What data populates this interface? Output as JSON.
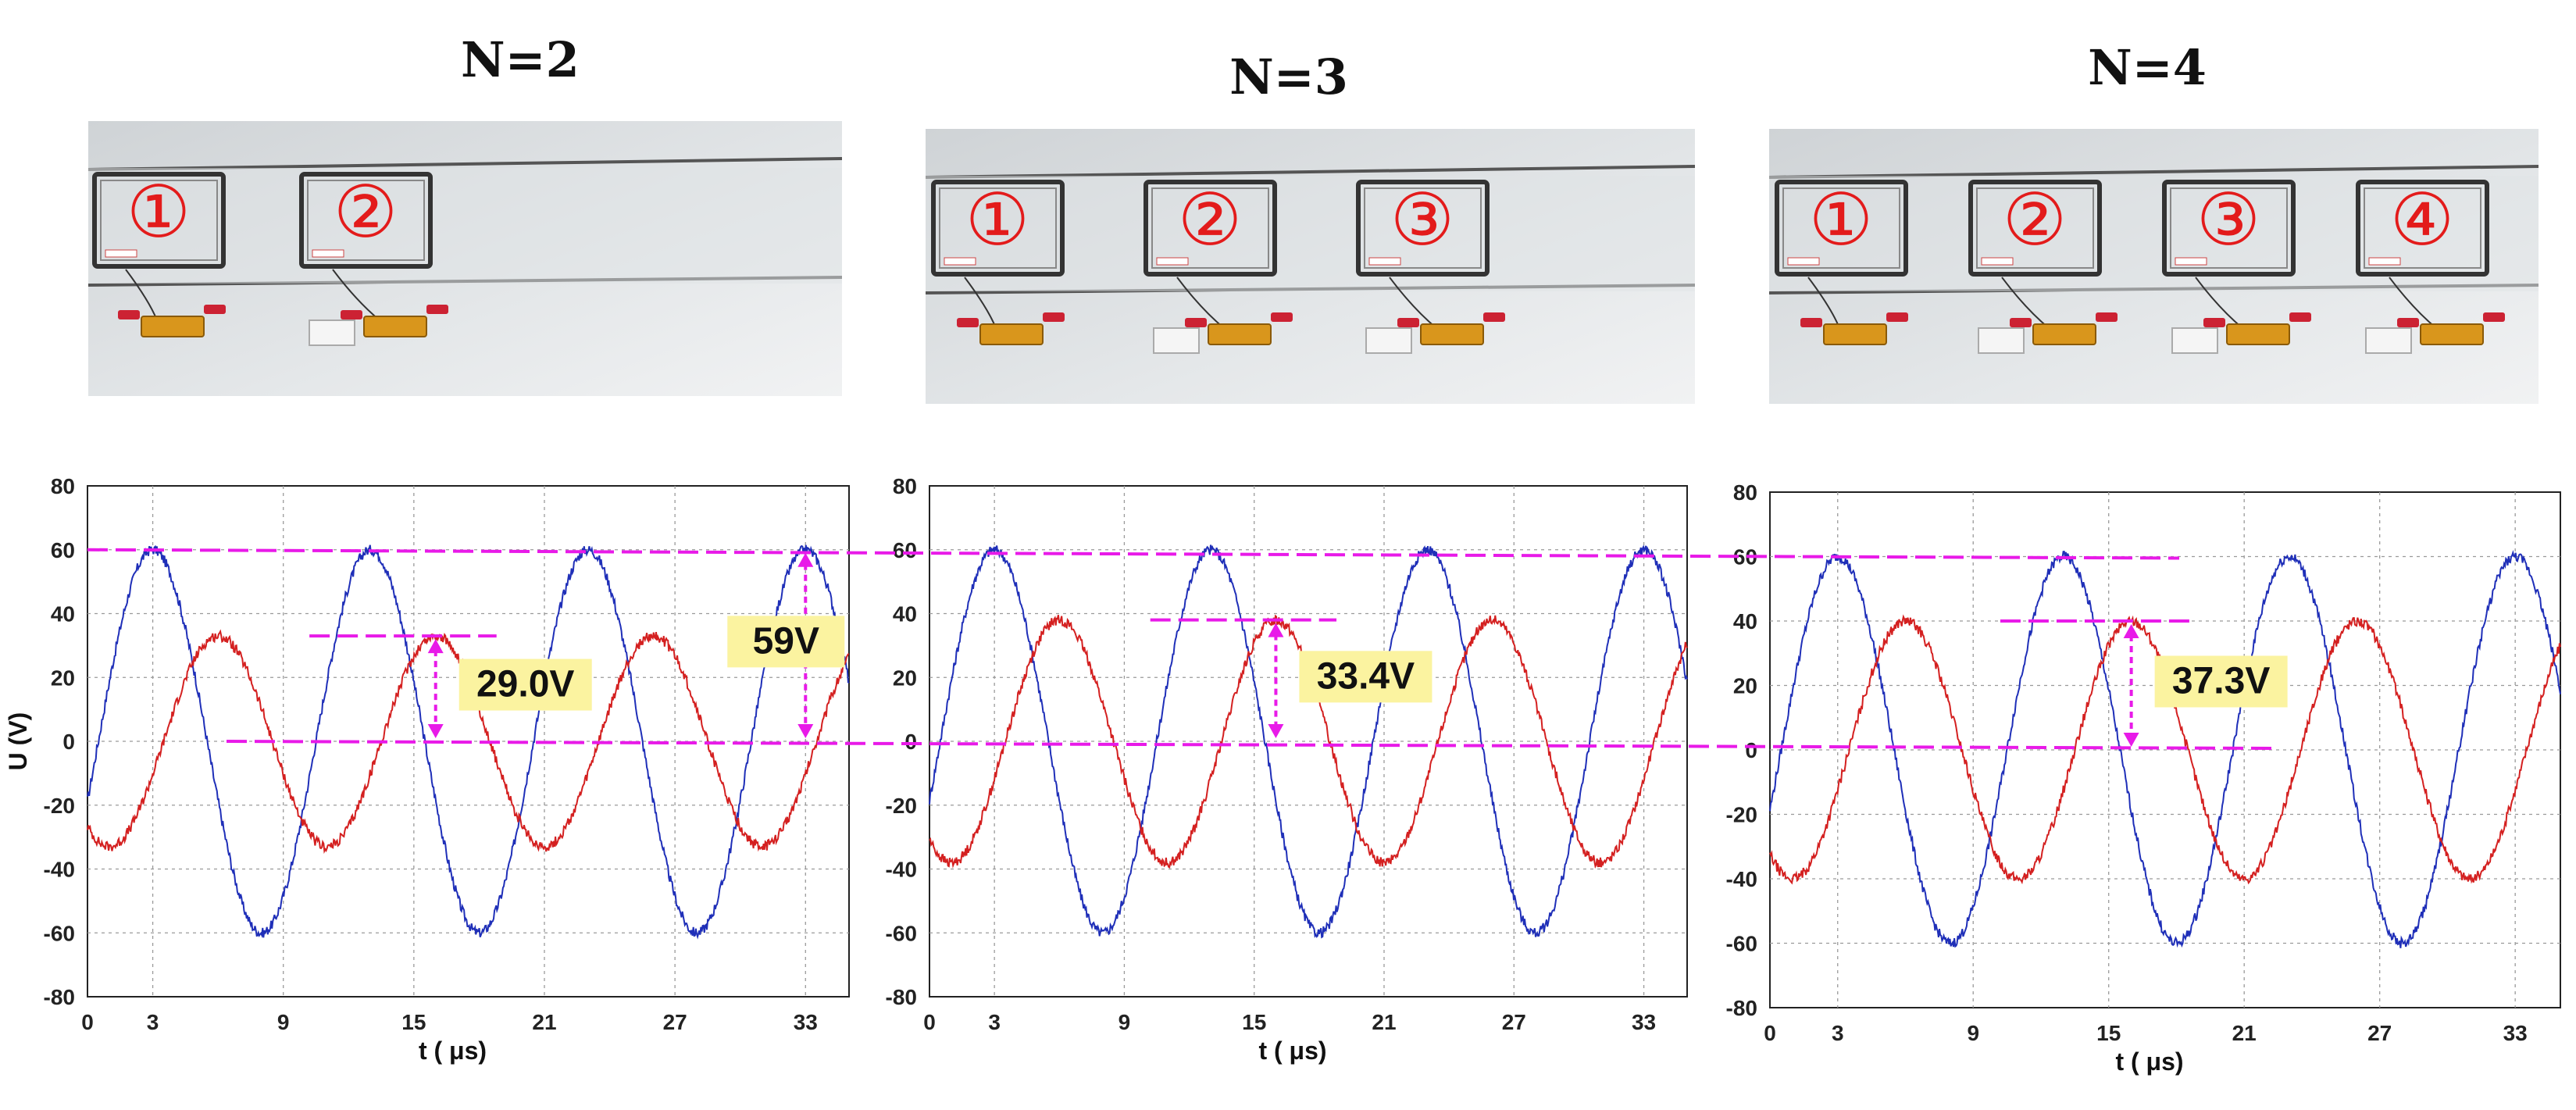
{
  "colors": {
    "series_blue": "#1f2fb8",
    "series_red": "#d42020",
    "annotation_magenta": "#e81ae8",
    "badge_fill": "#fbf3a0",
    "photo_label": "#e31b1b"
  },
  "icons": {
    "measure": "double-headed-arrow-icon"
  },
  "panels": [
    {
      "title": "N=2",
      "photo": {
        "coil_labels": [
          "①",
          "②"
        ]
      },
      "annotation": "29.0V"
    },
    {
      "title": "N=3",
      "photo": {
        "coil_labels": [
          "①",
          "②",
          "③"
        ]
      },
      "annotation": "33.4V"
    },
    {
      "title": "N=4",
      "photo": {
        "coil_labels": [
          "①",
          "②",
          "③",
          "④"
        ]
      },
      "annotation": "37.3V"
    }
  ],
  "shared_annotation": "59V",
  "chart_data": [
    {
      "type": "line",
      "xlabel": "t ( μs)",
      "ylabel": "U (V)",
      "xlim": [
        0,
        35
      ],
      "ylim": [
        -80,
        80
      ],
      "xticks": [
        0,
        3,
        9,
        15,
        21,
        27,
        33
      ],
      "yticks": [
        80,
        60,
        40,
        20,
        0,
        -20,
        -40,
        -60,
        -80
      ],
      "grid": true,
      "series": [
        {
          "color": "blue",
          "amplitude": 60,
          "period_us": 10,
          "peak_times_us": [
            3,
            13,
            23,
            33
          ]
        },
        {
          "color": "red",
          "amplitude": 33,
          "period_us": 10,
          "peak_times_us": [
            6,
            16,
            26
          ]
        }
      ],
      "annotation_value_V": 29.0
    },
    {
      "type": "line",
      "xlabel": "t ( μs)",
      "ylabel": "",
      "xlim": [
        0,
        35
      ],
      "ylim": [
        -80,
        80
      ],
      "xticks": [
        0,
        3,
        9,
        15,
        21,
        27,
        33
      ],
      "yticks": [
        80,
        60,
        40,
        20,
        0,
        -20,
        -40,
        -60,
        -80
      ],
      "grid": true,
      "series": [
        {
          "color": "blue",
          "amplitude": 60,
          "period_us": 10,
          "peak_times_us": [
            3,
            13,
            23,
            33
          ]
        },
        {
          "color": "red",
          "amplitude": 38,
          "period_us": 10,
          "peak_times_us": [
            6,
            16,
            26
          ]
        }
      ],
      "annotation_value_V": 33.4
    },
    {
      "type": "line",
      "xlabel": "t ( μs)",
      "ylabel": "",
      "xlim": [
        0,
        35
      ],
      "ylim": [
        -80,
        80
      ],
      "xticks": [
        0,
        3,
        9,
        15,
        21,
        27,
        33
      ],
      "yticks": [
        80,
        60,
        40,
        20,
        0,
        -20,
        -40,
        -60,
        -80
      ],
      "grid": true,
      "series": [
        {
          "color": "blue",
          "amplitude": 60,
          "period_us": 10,
          "peak_times_us": [
            3,
            13,
            23,
            33
          ]
        },
        {
          "color": "red",
          "amplitude": 40,
          "period_us": 10,
          "peak_times_us": [
            6,
            16,
            26
          ]
        }
      ],
      "annotation_value_V": 37.3
    }
  ]
}
